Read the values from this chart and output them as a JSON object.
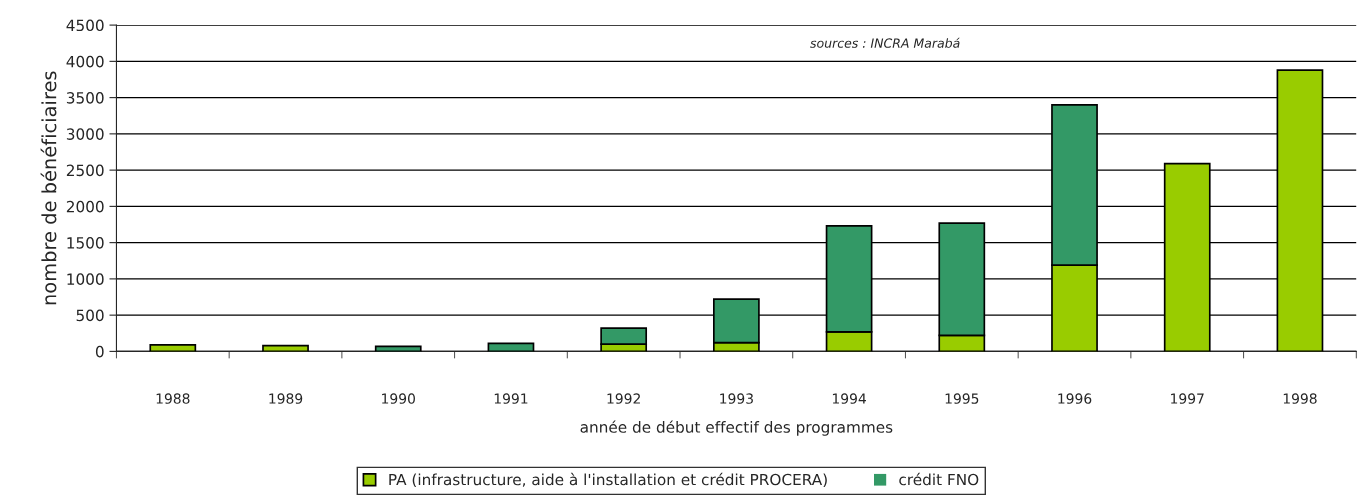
{
  "chart_data": {
    "type": "bar",
    "stacked": true,
    "ylabel": "nombre de bénéficiaires",
    "xlabel": "année de début effectif des programmes",
    "annotations": [
      "sources : INCRA Marabá"
    ],
    "categories": [
      "1988",
      "1989",
      "1990",
      "1991",
      "1992",
      "1993",
      "1994",
      "1995",
      "1996",
      "1997",
      "1998"
    ],
    "series": [
      {
        "name": "PA (infrastructure, aide à l'installation et crédit PROCERA)",
        "color": "#99cc00",
        "values": [
          90,
          80,
          0,
          0,
          100,
          120,
          270,
          220,
          1190,
          2590,
          3880
        ]
      },
      {
        "name": "crédit FNO",
        "color": "#339966",
        "values": [
          0,
          0,
          70,
          110,
          220,
          600,
          1460,
          1550,
          2210,
          0,
          0
        ]
      }
    ],
    "ylim": [
      0,
      4500
    ],
    "yticks": [
      0,
      500,
      1000,
      1500,
      2000,
      2500,
      3000,
      3500,
      4000,
      4500
    ],
    "grid": "y",
    "legend": "bottom"
  }
}
